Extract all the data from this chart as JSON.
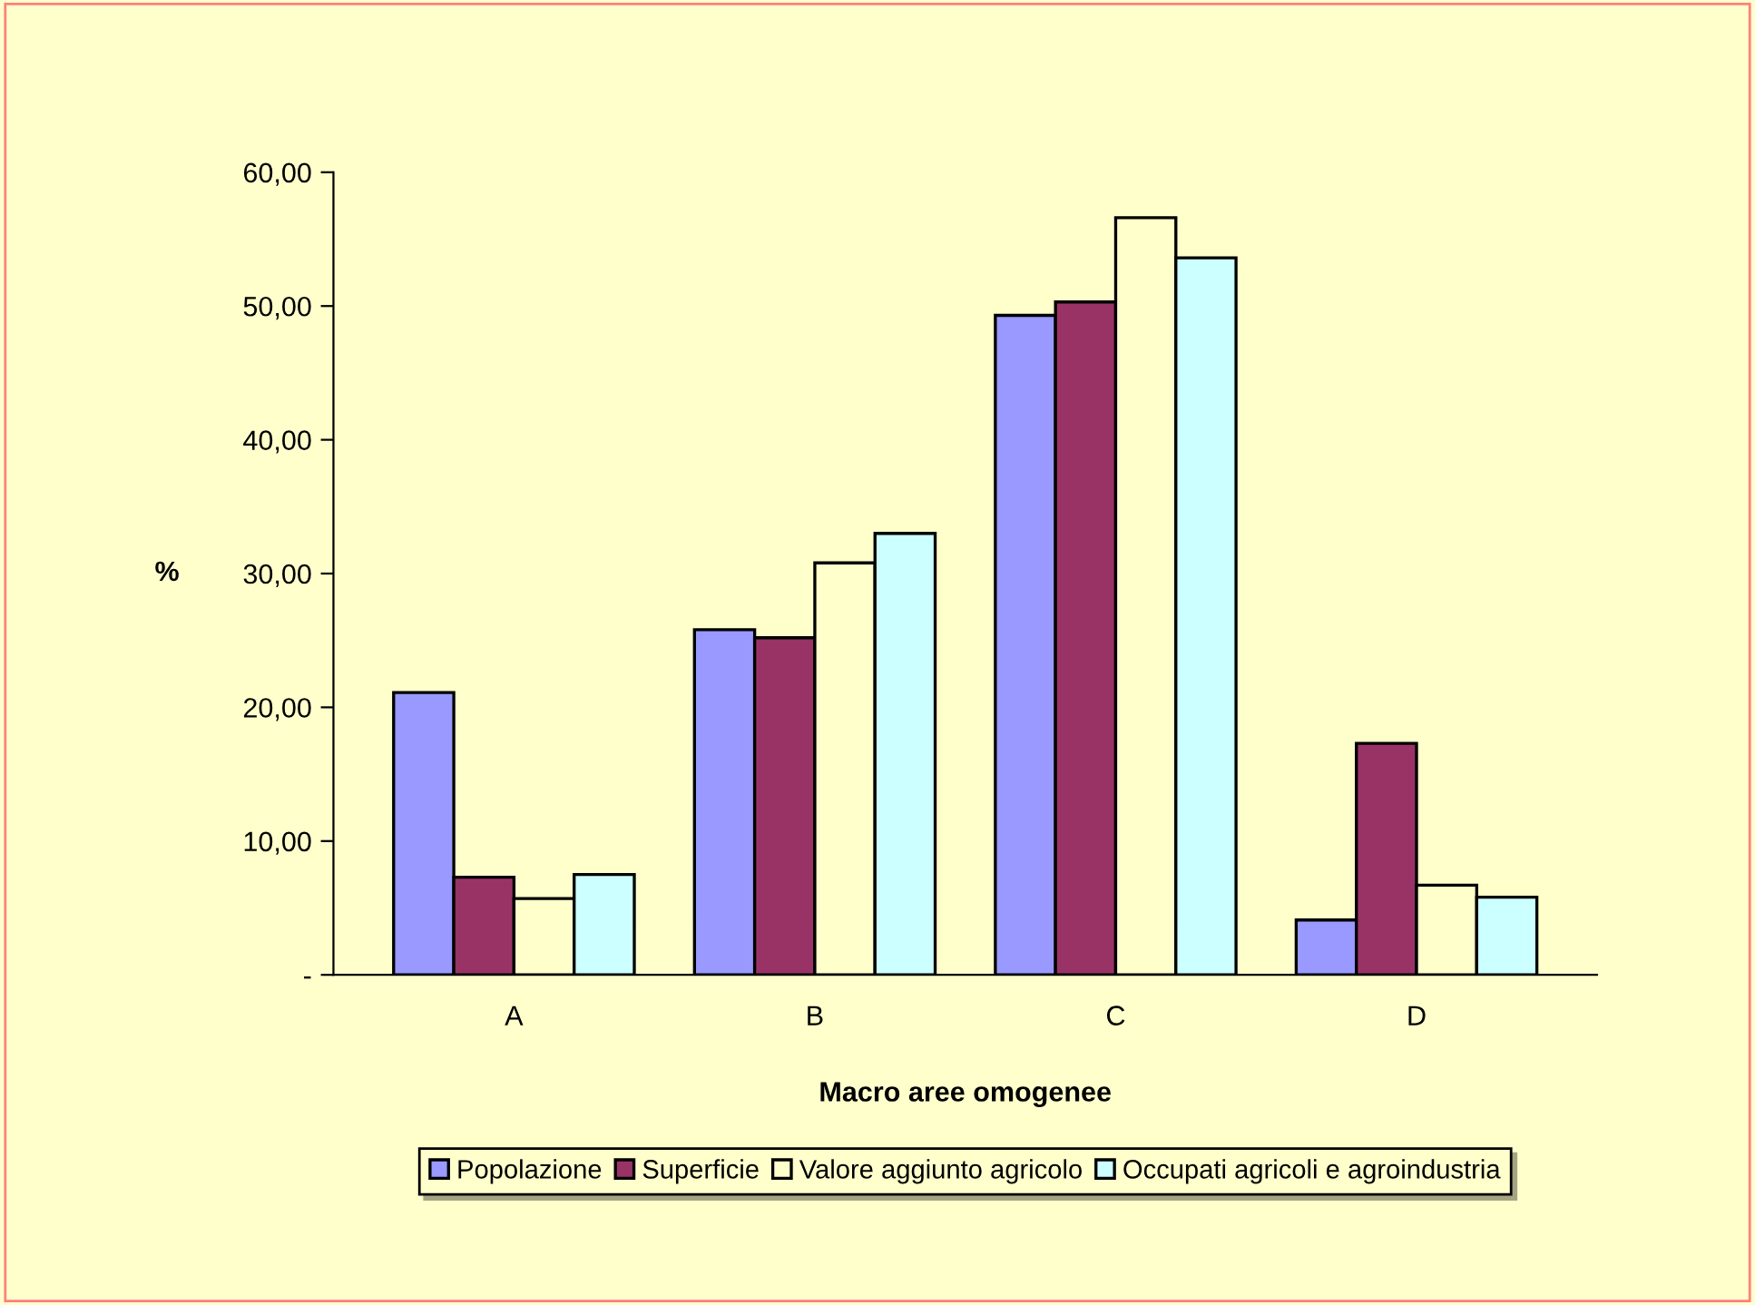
{
  "chart_data": {
    "type": "bar",
    "xlabel": "Macro aree omogenee",
    "ylabel": "%",
    "categories": [
      "A",
      "B",
      "C",
      "D"
    ],
    "series": [
      {
        "name": "Popolazione",
        "color": "#9999ff",
        "values": [
          21.1,
          25.8,
          49.3,
          4.1
        ]
      },
      {
        "name": "Superficie",
        "color": "#993366",
        "values": [
          7.3,
          25.2,
          50.3,
          17.3
        ]
      },
      {
        "name": "Valore aggiunto agricolo",
        "color": "#ffffcc",
        "values": [
          5.7,
          30.8,
          56.6,
          6.7
        ]
      },
      {
        "name": "Occupati agricoli e agroindustria",
        "color": "#ccffff",
        "values": [
          7.5,
          33.0,
          53.6,
          5.8
        ]
      }
    ],
    "ylim": [
      0,
      60
    ],
    "yticks": [
      {
        "value": 0,
        "label": "-"
      },
      {
        "value": 10,
        "label": "10,00"
      },
      {
        "value": 20,
        "label": "20,00"
      },
      {
        "value": 30,
        "label": "30,00"
      },
      {
        "value": 40,
        "label": "40,00"
      },
      {
        "value": 50,
        "label": "50,00"
      },
      {
        "value": 60,
        "label": "60,00"
      }
    ],
    "grid": false,
    "legend": "bottom"
  }
}
